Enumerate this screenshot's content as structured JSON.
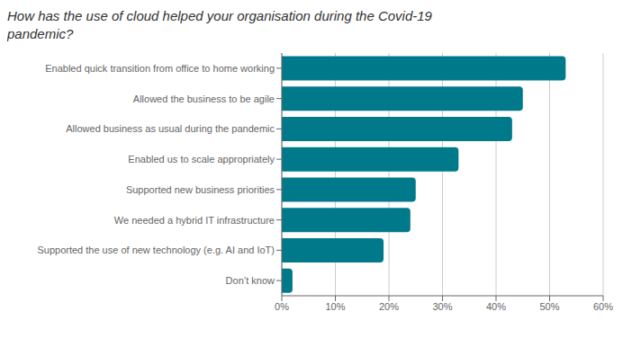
{
  "chart_data": {
    "type": "bar",
    "orientation": "horizontal",
    "title": "How has the use of cloud helped your organisation during the Covid-19 pandemic?",
    "categories": [
      "Enabled quick transition from office to home working",
      "Allowed the business to be agile",
      "Allowed business as usual during the pandemic",
      "Enabled us to scale appropriately",
      "Supported new business priorities",
      "We needed a hybrid IT infrastructure",
      "Supported the use of new technology (e.g. AI and IoT)",
      "Don’t know"
    ],
    "values": [
      53,
      45,
      43,
      33,
      25,
      24,
      19,
      2
    ],
    "color": "#007a8a",
    "xlim": [
      0,
      60
    ],
    "xticks": [
      {
        "value": 0,
        "label": "0%"
      },
      {
        "value": 10,
        "label": "10%"
      },
      {
        "value": 20,
        "label": "20%"
      },
      {
        "value": 30,
        "label": "30%"
      },
      {
        "value": 40,
        "label": "40%"
      },
      {
        "value": 50,
        "label": "50%"
      },
      {
        "value": 60,
        "label": "60%"
      }
    ],
    "grid": true
  }
}
